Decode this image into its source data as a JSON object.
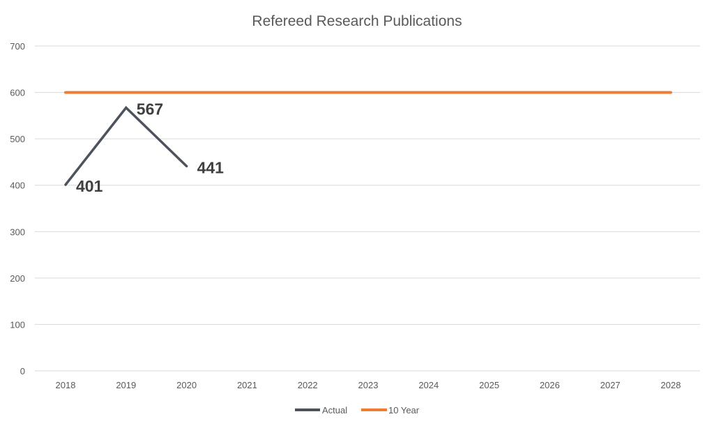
{
  "chart_data": {
    "type": "line",
    "title": "Refereed Research Publications",
    "xlabel": "",
    "ylabel": "",
    "categories": [
      "2018",
      "2019",
      "2020",
      "2021",
      "2022",
      "2023",
      "2024",
      "2025",
      "2026",
      "2027",
      "2028"
    ],
    "y_ticks": [
      "0",
      "100",
      "200",
      "300",
      "400",
      "500",
      "600",
      "700"
    ],
    "ylim": [
      0,
      700
    ],
    "grid": true,
    "legend_position": "bottom",
    "series": [
      {
        "name": "Actual",
        "color": "#4d535c",
        "values": [
          401,
          567,
          441,
          null,
          null,
          null,
          null,
          null,
          null,
          null,
          null
        ],
        "data_labels": [
          "401",
          "567",
          "441"
        ]
      },
      {
        "name": "10 Year",
        "color": "#ed7d31",
        "values": [
          600,
          600,
          600,
          600,
          600,
          600,
          600,
          600,
          600,
          600,
          600
        ]
      }
    ]
  }
}
